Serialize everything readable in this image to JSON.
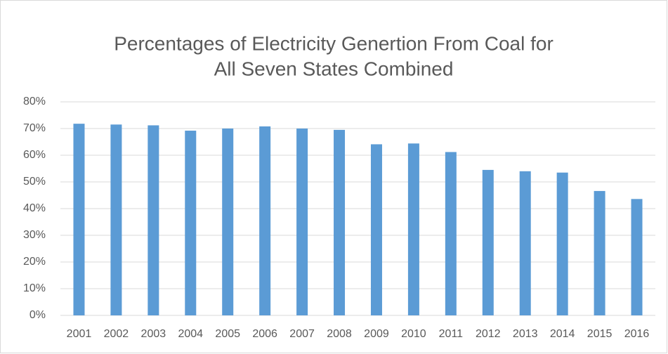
{
  "chart_data": {
    "type": "bar",
    "title": [
      "Percentages of Electricity Genertion From Coal for",
      "All Seven States Combined"
    ],
    "categories": [
      "2001",
      "2002",
      "2003",
      "2004",
      "2005",
      "2006",
      "2007",
      "2008",
      "2009",
      "2010",
      "2011",
      "2012",
      "2013",
      "2014",
      "2015",
      "2016"
    ],
    "values": [
      71.8,
      71.5,
      71.2,
      69.2,
      70.0,
      70.8,
      70.0,
      69.5,
      64.1,
      64.4,
      61.2,
      54.5,
      54.0,
      53.5,
      46.6,
      43.6
    ],
    "color": "#5b9bd5",
    "ylim": [
      0,
      80
    ],
    "yticks": [
      {
        "value": 0,
        "label": "0%"
      },
      {
        "value": 10,
        "label": "10%"
      },
      {
        "value": 20,
        "label": "20%"
      },
      {
        "value": 30,
        "label": "30%"
      },
      {
        "value": 40,
        "label": "40%"
      },
      {
        "value": 50,
        "label": "50%"
      },
      {
        "value": 60,
        "label": "60%"
      },
      {
        "value": 70,
        "label": "70%"
      },
      {
        "value": 80,
        "label": "80%"
      }
    ],
    "grid": true
  }
}
